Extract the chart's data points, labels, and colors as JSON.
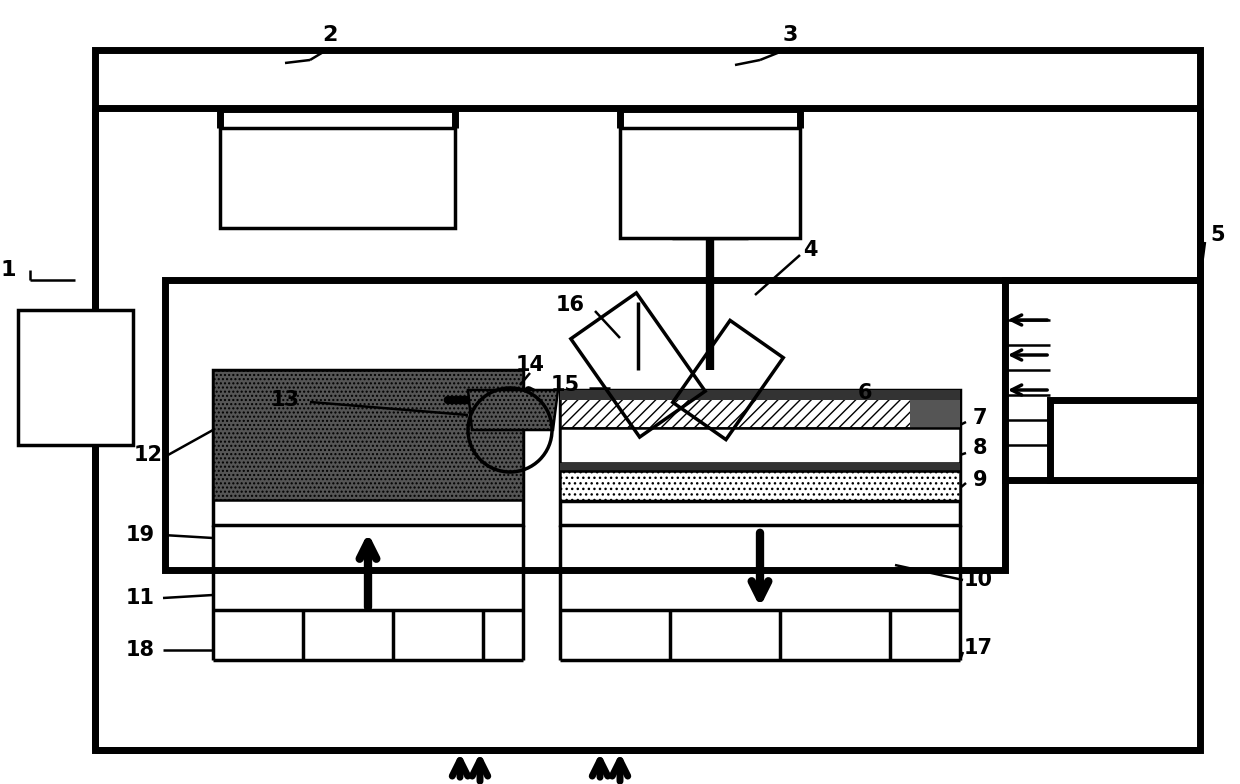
{
  "bg_color": "#ffffff",
  "lw_tk": 5.0,
  "lw_md": 2.5,
  "lw_tn": 1.8,
  "fig_w": 12.4,
  "fig_h": 7.84,
  "dpi": 100
}
